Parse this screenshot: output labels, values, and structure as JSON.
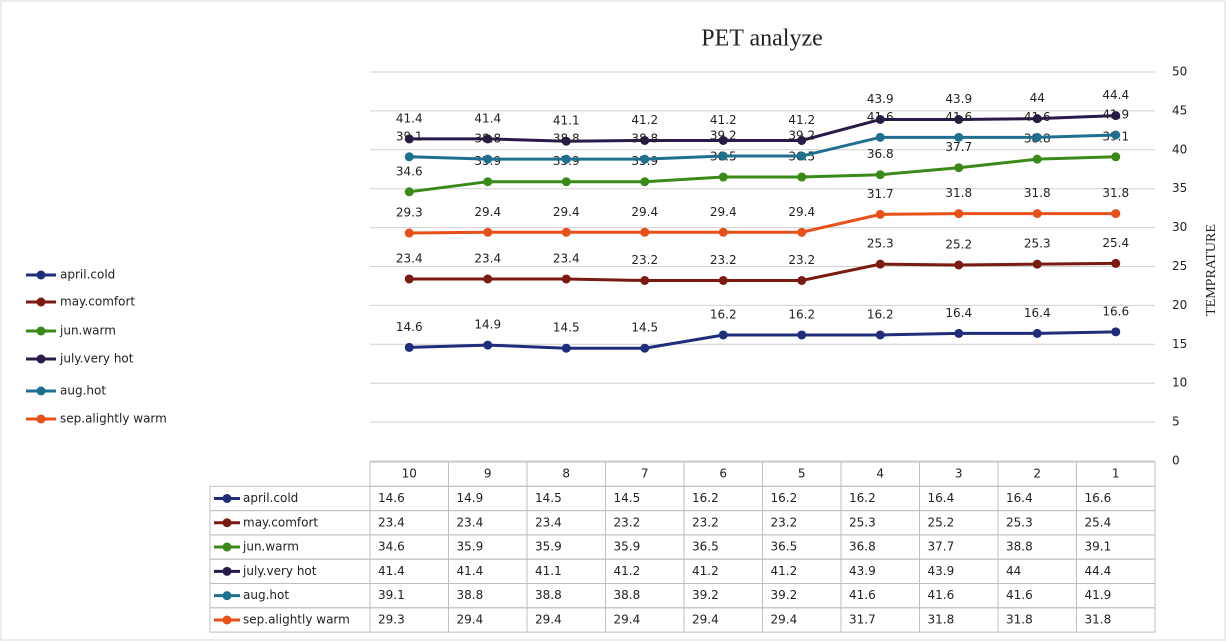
{
  "chart_data": {
    "type": "line",
    "title": "PET analyze",
    "y_label": "TEMPRATURE",
    "categories": [
      "10",
      "9",
      "8",
      "7",
      "6",
      "5",
      "4",
      "3",
      "2",
      "1"
    ],
    "series": [
      {
        "name": "april.cold",
        "color": "#1f2d7a",
        "values": [
          14.6,
          14.9,
          14.5,
          14.5,
          16.2,
          16.2,
          16.2,
          16.4,
          16.4,
          16.6
        ]
      },
      {
        "name": "may.comfort",
        "color": "#7b1a10",
        "values": [
          23.4,
          23.4,
          23.4,
          23.2,
          23.2,
          23.2,
          25.3,
          25.2,
          25.3,
          25.4
        ]
      },
      {
        "name": "jun.warm",
        "color": "#3a8a1a",
        "values": [
          34.6,
          35.9,
          35.9,
          35.9,
          36.5,
          36.5,
          36.8,
          37.7,
          38.8,
          39.1
        ]
      },
      {
        "name": "july.very hot",
        "color": "#2a1a4a",
        "values": [
          41.4,
          41.4,
          41.1,
          41.2,
          41.2,
          41.2,
          43.9,
          43.9,
          44,
          44.4
        ]
      },
      {
        "name": "aug.hot",
        "color": "#1f6f8f",
        "values": [
          39.1,
          38.8,
          38.8,
          38.8,
          39.2,
          39.2,
          41.6,
          41.6,
          41.6,
          41.9
        ]
      },
      {
        "name": "sep.alightly warm",
        "color": "#e8501a",
        "values": [
          29.3,
          29.4,
          29.4,
          29.4,
          29.4,
          29.4,
          31.7,
          31.8,
          31.8,
          31.8
        ]
      }
    ],
    "ylim": [
      0,
      50
    ],
    "yticks": [
      0,
      5,
      10,
      15,
      20,
      25,
      30,
      35,
      40,
      45,
      50
    ],
    "grid": true,
    "legend": "left"
  }
}
